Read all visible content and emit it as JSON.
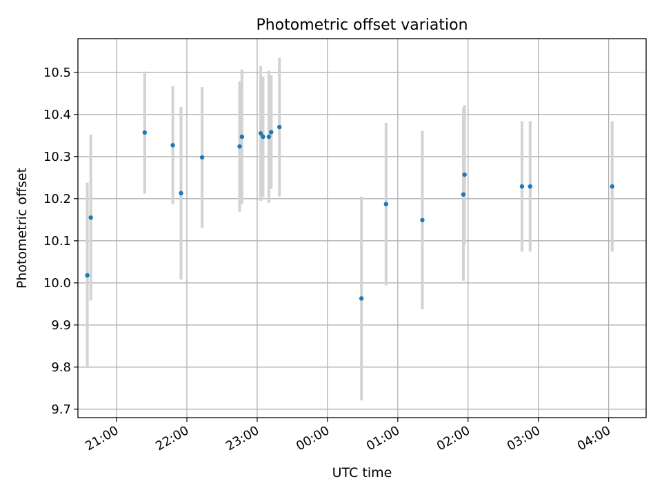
{
  "chart_data": {
    "type": "scatter",
    "title": "Photometric offset variation",
    "xlabel": "UTC time",
    "ylabel": "Photometric offset",
    "grid": true,
    "legend": "none",
    "x_axis": {
      "range": [
        "20:27",
        "04:32"
      ],
      "ticks": [
        "21:00",
        "22:00",
        "23:00",
        "00:00",
        "01:00",
        "02:00",
        "03:00",
        "04:00"
      ]
    },
    "ylim": [
      9.68,
      10.58
    ],
    "yticks": [
      "9.7",
      "9.8",
      "9.9",
      "10.0",
      "10.1",
      "10.2",
      "10.3",
      "10.4",
      "10.5"
    ],
    "colors": {
      "marker": "#1f77b4",
      "errorbar": "#d3d3d3",
      "grid": "#b0b0b0"
    },
    "points": [
      {
        "time": "20:35",
        "y": 10.018,
        "err": 0.22
      },
      {
        "time": "20:38",
        "y": 10.155,
        "err": 0.197
      },
      {
        "time": "21:24",
        "y": 10.357,
        "err": 0.145
      },
      {
        "time": "21:48",
        "y": 10.327,
        "err": 0.14
      },
      {
        "time": "21:55",
        "y": 10.213,
        "err": 0.205
      },
      {
        "time": "22:13",
        "y": 10.298,
        "err": 0.167
      },
      {
        "time": "22:45",
        "y": 10.324,
        "err": 0.155
      },
      {
        "time": "22:47",
        "y": 10.347,
        "err": 0.16
      },
      {
        "time": "23:03",
        "y": 10.355,
        "err": 0.16
      },
      {
        "time": "23:05",
        "y": 10.347,
        "err": 0.143
      },
      {
        "time": "23:10",
        "y": 10.347,
        "err": 0.157
      },
      {
        "time": "23:12",
        "y": 10.358,
        "err": 0.135
      },
      {
        "time": "23:19",
        "y": 10.37,
        "err": 0.165
      },
      {
        "time": "00:29",
        "y": 9.963,
        "err": 0.242
      },
      {
        "time": "00:50",
        "y": 10.187,
        "err": 0.193
      },
      {
        "time": "01:21",
        "y": 10.149,
        "err": 0.212
      },
      {
        "time": "01:56",
        "y": 10.21,
        "err": 0.205
      },
      {
        "time": "01:57",
        "y": 10.257,
        "err": 0.165
      },
      {
        "time": "02:46",
        "y": 10.229,
        "err": 0.155
      },
      {
        "time": "02:53",
        "y": 10.229,
        "err": 0.155
      },
      {
        "time": "04:03",
        "y": 10.229,
        "err": 0.155
      }
    ]
  }
}
